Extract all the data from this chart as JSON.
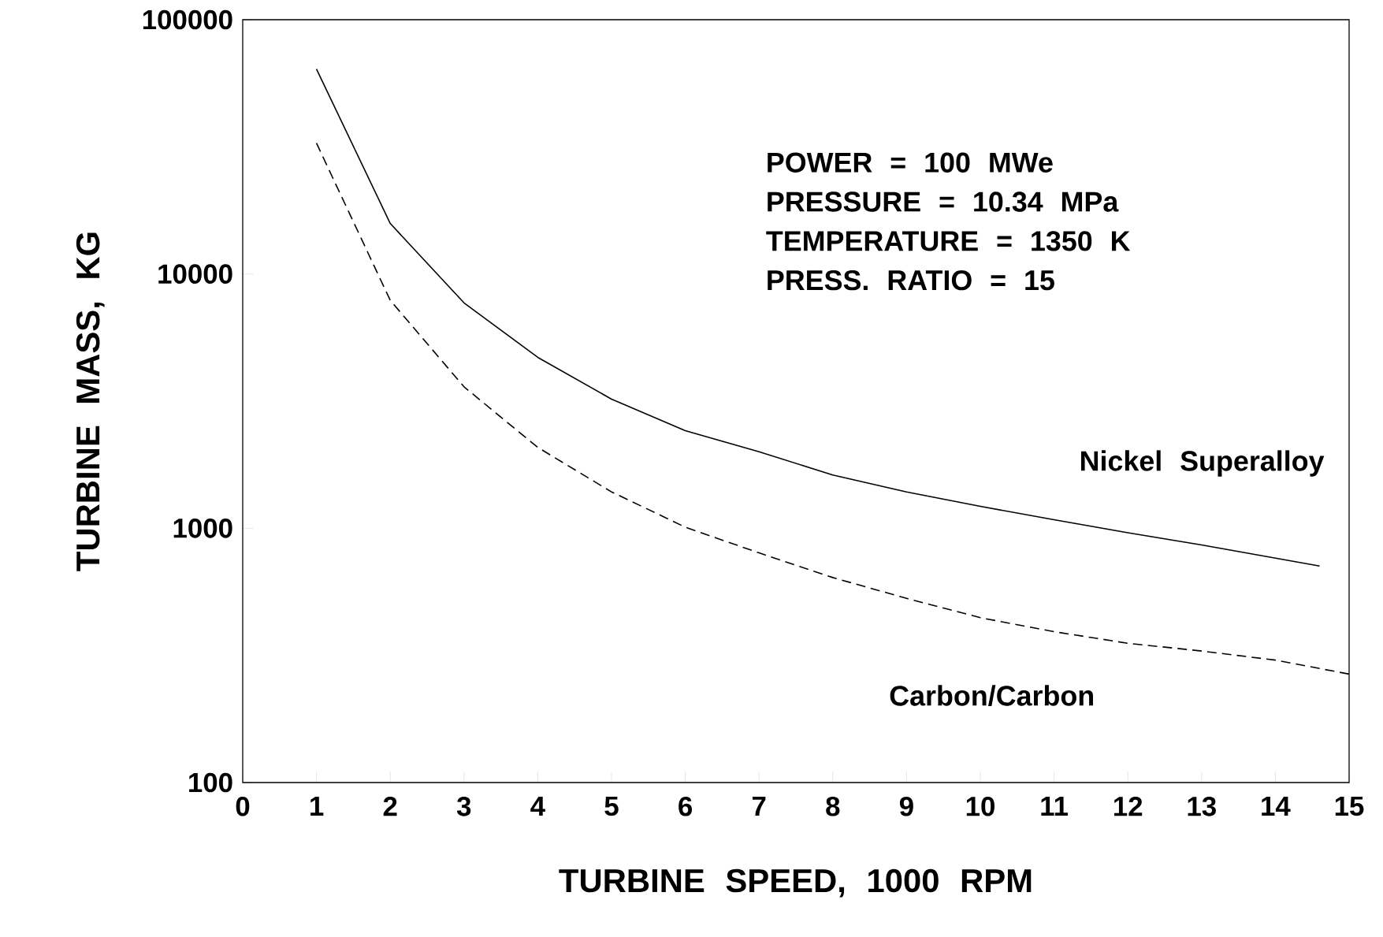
{
  "chart_data": {
    "type": "line",
    "xlabel": "TURBINE SPEED, 1000 RPM",
    "ylabel": "TURBINE MASS, KG",
    "x": [
      1,
      2,
      3,
      4,
      5,
      6,
      7,
      8,
      9,
      10,
      11,
      12,
      13,
      14.6
    ],
    "series": [
      {
        "name": "Nickel Superalloy",
        "color": "#000000",
        "line_style": "solid",
        "values": [
          64000,
          15800,
          7700,
          4700,
          3220,
          2420,
          2000,
          1620,
          1390,
          1220,
          1080,
          960,
          860,
          710
        ]
      },
      {
        "name": "Carbon/Carbon",
        "color": "#000000",
        "line_style": "dashed",
        "x": [
          1,
          2,
          3,
          4,
          5,
          6,
          7,
          8,
          9,
          10,
          11,
          12,
          13,
          14,
          15
        ],
        "values": [
          32700,
          7880,
          3600,
          2080,
          1390,
          1010,
          800,
          640,
          530,
          445,
          392,
          353,
          329,
          303,
          267
        ]
      }
    ],
    "annotations": [
      "POWER = 100 MWe",
      "PRESSURE = 10.34 MPa",
      "TEMPERATURE = 1350 K",
      "PRESS. RATIO = 15"
    ],
    "xlim": [
      0,
      15
    ],
    "xticks": [
      0,
      1,
      2,
      3,
      4,
      5,
      6,
      7,
      8,
      9,
      10,
      11,
      12,
      13,
      14,
      15
    ],
    "ylim": [
      100,
      100000
    ],
    "yticks": [
      100,
      1000,
      10000,
      100000
    ],
    "log": "y",
    "grid": false,
    "legend": false,
    "marker": "none"
  }
}
